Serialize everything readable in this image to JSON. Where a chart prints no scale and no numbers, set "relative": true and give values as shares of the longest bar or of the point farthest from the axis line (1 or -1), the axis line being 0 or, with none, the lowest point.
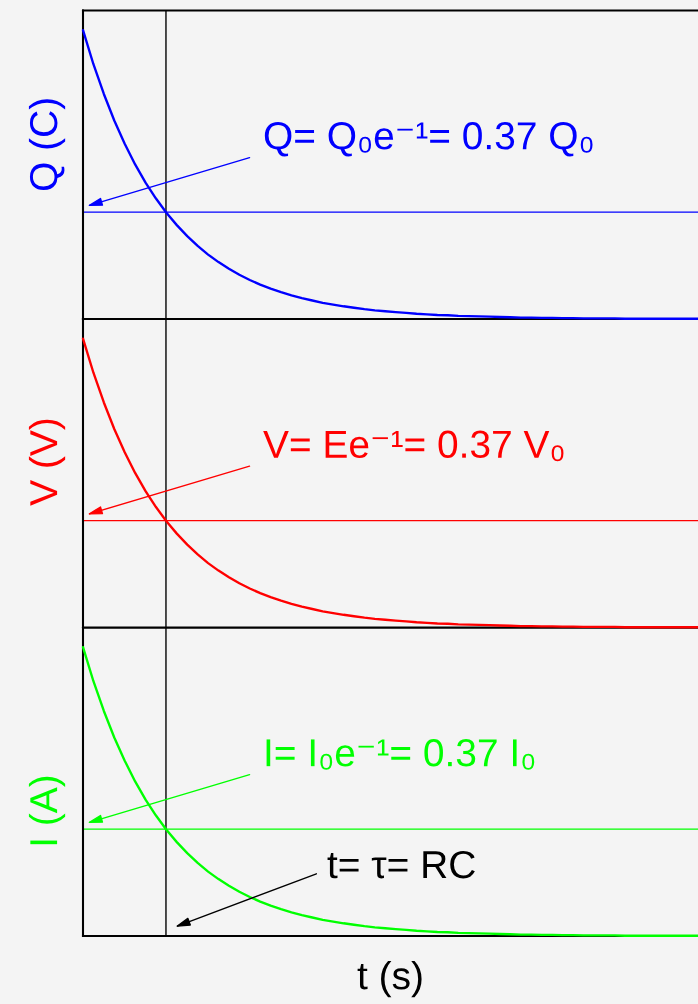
{
  "chart_data": [
    {
      "type": "line",
      "relative": true,
      "tick_labels": false,
      "ylabel": "Q (C)",
      "categories": [
        null,
        null,
        null,
        null,
        null,
        null,
        null,
        null,
        null,
        null,
        null,
        null,
        null,
        null,
        null,
        null,
        null,
        null,
        null,
        null,
        null,
        null,
        null,
        null,
        null,
        null,
        null,
        null,
        null,
        null,
        null,
        null,
        null,
        null,
        null,
        null,
        null,
        null,
        null,
        null,
        null,
        null,
        null,
        null,
        null,
        null,
        null,
        null,
        null,
        null,
        null,
        null,
        null,
        null,
        null,
        null,
        null,
        null,
        null,
        null
      ],
      "series": [
        {
          "color": "#0000ff",
          "values": [
            1.0,
            0.882,
            0.779,
            0.687,
            0.607,
            0.535,
            0.472,
            0.417,
            0.368,
            0.325,
            0.287,
            0.253,
            0.223,
            0.197,
            0.174,
            0.153,
            0.135,
            0.119,
            0.105,
            0.093,
            0.082,
            0.072,
            0.064,
            0.056,
            0.05,
            0.044,
            0.039,
            0.034,
            0.03,
            0.027,
            0.024,
            0.021,
            0.018,
            0.016,
            0.014,
            0.013,
            0.011,
            0.01,
            0.009,
            0.008,
            0.007,
            0.006,
            0.005,
            0.005,
            0.004,
            0.004,
            0.003,
            0.003,
            0.002,
            0.002,
            0.002,
            0.002,
            0.001,
            0.001,
            0.001,
            0.001,
            0.001,
            0.001,
            0.001,
            0.001
          ]
        }
      ],
      "ref_lines": [
        {
          "axis": "y",
          "value": 0.37,
          "label": "Q= Q₀e⁻¹= 0.37 Q₀",
          "color": "#0000ff"
        }
      ]
    },
    {
      "type": "line",
      "relative": true,
      "tick_labels": false,
      "ylabel": "V (V)",
      "categories": [
        null,
        null,
        null,
        null,
        null,
        null,
        null,
        null,
        null,
        null,
        null,
        null,
        null,
        null,
        null,
        null,
        null,
        null,
        null,
        null,
        null,
        null,
        null,
        null,
        null,
        null,
        null,
        null,
        null,
        null,
        null,
        null,
        null,
        null,
        null,
        null,
        null,
        null,
        null,
        null,
        null,
        null,
        null,
        null,
        null,
        null,
        null,
        null,
        null,
        null,
        null,
        null,
        null,
        null,
        null,
        null,
        null,
        null,
        null,
        null
      ],
      "series": [
        {
          "color": "#ff0000",
          "values": [
            1.0,
            0.882,
            0.779,
            0.687,
            0.607,
            0.535,
            0.472,
            0.417,
            0.368,
            0.325,
            0.287,
            0.253,
            0.223,
            0.197,
            0.174,
            0.153,
            0.135,
            0.119,
            0.105,
            0.093,
            0.082,
            0.072,
            0.064,
            0.056,
            0.05,
            0.044,
            0.039,
            0.034,
            0.03,
            0.027,
            0.024,
            0.021,
            0.018,
            0.016,
            0.014,
            0.013,
            0.011,
            0.01,
            0.009,
            0.008,
            0.007,
            0.006,
            0.005,
            0.005,
            0.004,
            0.004,
            0.003,
            0.003,
            0.002,
            0.002,
            0.002,
            0.002,
            0.001,
            0.001,
            0.001,
            0.001,
            0.001,
            0.001,
            0.001,
            0.001
          ]
        }
      ],
      "ref_lines": [
        {
          "axis": "y",
          "value": 0.37,
          "label": "V= Ee⁻¹= 0.37 V₀",
          "color": "#ff0000"
        }
      ]
    },
    {
      "type": "line",
      "relative": true,
      "tick_labels": false,
      "ylabel": "I (A)",
      "xlabel": "t (s)",
      "annotations": [
        "t= τ= RC"
      ],
      "categories": [
        null,
        null,
        null,
        null,
        null,
        null,
        null,
        null,
        null,
        null,
        null,
        null,
        null,
        null,
        null,
        null,
        null,
        null,
        null,
        null,
        null,
        null,
        null,
        null,
        null,
        null,
        null,
        null,
        null,
        null,
        null,
        null,
        null,
        null,
        null,
        null,
        null,
        null,
        null,
        null,
        null,
        null,
        null,
        null,
        null,
        null,
        null,
        null,
        null,
        null,
        null,
        null,
        null,
        null,
        null,
        null,
        null,
        null,
        null,
        null
      ],
      "series": [
        {
          "color": "#00ff00",
          "values": [
            1.0,
            0.882,
            0.779,
            0.687,
            0.607,
            0.535,
            0.472,
            0.417,
            0.368,
            0.325,
            0.287,
            0.253,
            0.223,
            0.197,
            0.174,
            0.153,
            0.135,
            0.119,
            0.105,
            0.093,
            0.082,
            0.072,
            0.064,
            0.056,
            0.05,
            0.044,
            0.039,
            0.034,
            0.03,
            0.027,
            0.024,
            0.021,
            0.018,
            0.016,
            0.014,
            0.013,
            0.011,
            0.01,
            0.009,
            0.008,
            0.007,
            0.006,
            0.005,
            0.005,
            0.004,
            0.004,
            0.003,
            0.003,
            0.002,
            0.002,
            0.002,
            0.002,
            0.001,
            0.001,
            0.001,
            0.001,
            0.001,
            0.001,
            0.001,
            0.001
          ]
        }
      ],
      "ref_lines": [
        {
          "axis": "y",
          "value": 0.37,
          "label": "I= I₀e⁻¹= 0.37 I₀",
          "color": "#00ff00"
        }
      ]
    }
  ]
}
